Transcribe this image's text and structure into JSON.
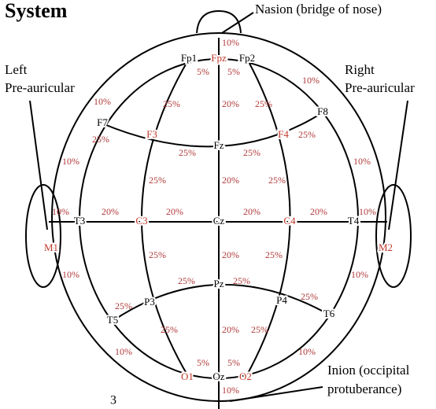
{
  "title": "System",
  "annotations": {
    "nasion": "Nasion (bridge of nose)",
    "left": [
      "Left",
      "Pre-auricular"
    ],
    "right": [
      "Right",
      "Pre-auricular"
    ],
    "inion": [
      "Inion (occipital",
      "protuberance)"
    ]
  },
  "page_number": "3",
  "electrodes": [
    "Fp1",
    "Fpz",
    "Fp2",
    "F7",
    "F3",
    "Fz",
    "F4",
    "F8",
    "T3",
    "C3",
    "Cz",
    "C4",
    "T4",
    "M1",
    "M2",
    "T5",
    "P3",
    "Pz",
    "P4",
    "T6",
    "O1",
    "Oz",
    "O2"
  ],
  "percentages": [
    "10%",
    "5%",
    "5%",
    "10%",
    "10%",
    "25%",
    "20%",
    "25%",
    "25%",
    "25%",
    "25%",
    "25%",
    "10%",
    "10%",
    "25%",
    "20%",
    "25%",
    "10%",
    "20%",
    "20%",
    "20%",
    "20%",
    "10%",
    "25%",
    "20%",
    "25%",
    "10%",
    "10%",
    "25%",
    "25%",
    "25%",
    "25%",
    "25%",
    "20%",
    "25%",
    "10%",
    "10%",
    "5%",
    "5%",
    "10%"
  ]
}
